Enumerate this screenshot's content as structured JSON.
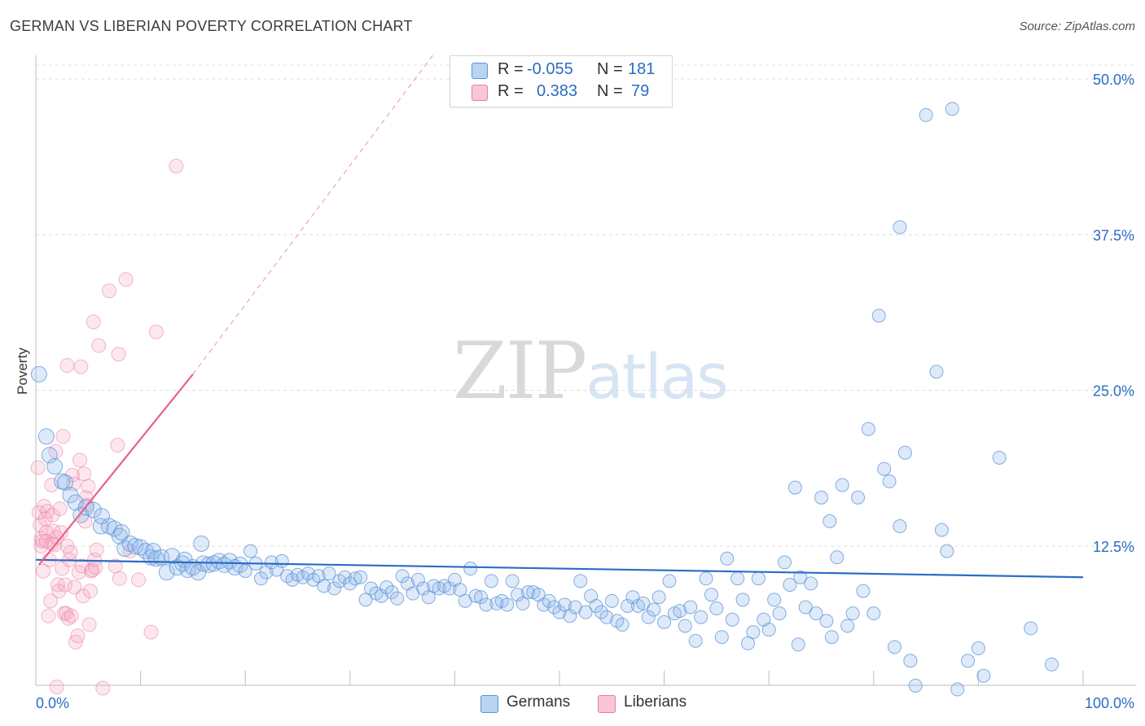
{
  "header": {
    "title": "GERMAN VS LIBERIAN POVERTY CORRELATION CHART",
    "source": "Source: ZipAtlas.com"
  },
  "watermark": {
    "zip": "ZIP",
    "atlas": "atlas"
  },
  "legend": {
    "rows": [
      {
        "r_label": "R =",
        "r_value": "-0.055",
        "n_label": "N =",
        "n_value": "181",
        "color": "#5f93d6"
      },
      {
        "r_label": "R =",
        "r_value": "0.383",
        "n_label": "N =",
        "n_value": "79",
        "color": "#e77fa3"
      }
    ]
  },
  "bottom_legend": {
    "germans": "Germans",
    "liberians": "Liberians"
  },
  "chart_data": {
    "type": "scatter",
    "title": "GERMAN VS LIBERIAN POVERTY CORRELATION CHART",
    "xlabel": "",
    "ylabel": "Poverty",
    "xlim": [
      0,
      100
    ],
    "ylim": [
      0,
      52
    ],
    "x_tick_labels": [
      "0.0%",
      "100.0%"
    ],
    "y_ticks": [
      12.5,
      25.0,
      37.5,
      50.0
    ],
    "y_tick_labels": [
      "12.5%",
      "25.0%",
      "37.5%",
      "50.0%"
    ],
    "colors": {
      "germans": "#5f93d6",
      "liberians": "#e77fa3",
      "germans_line": "#2b6cc4",
      "liberians_line": "#e8608f"
    },
    "series": [
      {
        "name": "Germans",
        "trend": {
          "x": [
            0,
            100
          ],
          "y": [
            11.4,
            10.0
          ]
        },
        "points": [
          [
            0.3,
            26.3
          ],
          [
            1,
            21.3
          ],
          [
            1.3,
            19.8
          ],
          [
            1.8,
            18.9
          ],
          [
            2.5,
            17.7
          ],
          [
            2.8,
            17.6
          ],
          [
            3.3,
            16.6
          ],
          [
            3.8,
            16
          ],
          [
            4.3,
            15
          ],
          [
            4.8,
            15.6
          ],
          [
            5.5,
            15.4
          ],
          [
            6.2,
            14.1
          ],
          [
            6.3,
            14.9
          ],
          [
            7,
            14.1
          ],
          [
            7.5,
            13.9
          ],
          [
            8,
            13.3
          ],
          [
            8.2,
            13.6
          ],
          [
            8.5,
            12.3
          ],
          [
            9,
            12.7
          ],
          [
            9.5,
            12.5
          ],
          [
            10,
            12.4
          ],
          [
            10.5,
            12.1
          ],
          [
            11,
            11.6
          ],
          [
            11.2,
            12.1
          ],
          [
            11.5,
            11.5
          ],
          [
            12,
            11.6
          ],
          [
            12.5,
            10.4
          ],
          [
            13,
            11.7
          ],
          [
            13.5,
            10.8
          ],
          [
            14,
            11.1
          ],
          [
            14.2,
            11.4
          ],
          [
            14.5,
            10.6
          ],
          [
            15,
            10.8
          ],
          [
            15.5,
            10.4
          ],
          [
            15.8,
            12.7
          ],
          [
            16,
            11.1
          ],
          [
            16.5,
            11
          ],
          [
            17,
            11.1
          ],
          [
            17.5,
            11.3
          ],
          [
            18,
            11
          ],
          [
            18.5,
            11.3
          ],
          [
            19,
            10.8
          ],
          [
            19.5,
            11
          ],
          [
            20,
            10.5
          ],
          [
            20.5,
            12.1
          ],
          [
            21,
            11.1
          ],
          [
            21.5,
            9.9
          ],
          [
            22,
            10.4
          ],
          [
            22.5,
            11.2
          ],
          [
            23,
            10.6
          ],
          [
            23.5,
            11.3
          ],
          [
            24,
            10.1
          ],
          [
            24.5,
            9.8
          ],
          [
            25,
            10.2
          ],
          [
            25.5,
            10
          ],
          [
            26,
            10.3
          ],
          [
            26.5,
            9.8
          ],
          [
            27,
            10.1
          ],
          [
            27.5,
            9.3
          ],
          [
            28,
            10.3
          ],
          [
            28.5,
            9.1
          ],
          [
            29,
            9.7
          ],
          [
            29.5,
            10
          ],
          [
            30,
            9.5
          ],
          [
            30.5,
            9.9
          ],
          [
            31,
            10
          ],
          [
            31.5,
            8.2
          ],
          [
            32,
            9.1
          ],
          [
            32.5,
            8.7
          ],
          [
            33,
            8.5
          ],
          [
            33.5,
            9.2
          ],
          [
            34,
            8.8
          ],
          [
            34.5,
            8.3
          ],
          [
            35,
            10.1
          ],
          [
            35.5,
            9.5
          ],
          [
            36,
            8.7
          ],
          [
            36.5,
            9.8
          ],
          [
            37,
            9.1
          ],
          [
            37.5,
            8.4
          ],
          [
            38,
            9.3
          ],
          [
            38.5,
            9.1
          ],
          [
            39,
            9.3
          ],
          [
            39.5,
            9.1
          ],
          [
            40,
            9.8
          ],
          [
            40.5,
            9
          ],
          [
            41,
            8.1
          ],
          [
            41.5,
            10.7
          ],
          [
            42,
            8.5
          ],
          [
            42.5,
            8.4
          ],
          [
            43,
            7.8
          ],
          [
            43.5,
            9.7
          ],
          [
            44,
            7.9
          ],
          [
            44.5,
            8.1
          ],
          [
            45,
            7.8
          ],
          [
            45.5,
            9.7
          ],
          [
            46,
            8.6
          ],
          [
            46.5,
            7.9
          ],
          [
            47,
            8.8
          ],
          [
            47.5,
            8.8
          ],
          [
            48,
            8.6
          ],
          [
            48.5,
            7.8
          ],
          [
            49,
            8.1
          ],
          [
            49.5,
            7.6
          ],
          [
            50,
            7.2
          ],
          [
            50.5,
            7.8
          ],
          [
            51,
            6.9
          ],
          [
            51.5,
            7.6
          ],
          [
            52,
            9.7
          ],
          [
            52.5,
            7.2
          ],
          [
            53,
            8.5
          ],
          [
            53.5,
            7.7
          ],
          [
            54,
            7.2
          ],
          [
            54.5,
            6.8
          ],
          [
            55,
            8.1
          ],
          [
            55.5,
            6.5
          ],
          [
            56,
            6.2
          ],
          [
            56.5,
            7.7
          ],
          [
            57,
            8.4
          ],
          [
            57.5,
            7.7
          ],
          [
            58,
            7.9
          ],
          [
            58.5,
            6.8
          ],
          [
            59,
            7.4
          ],
          [
            59.5,
            8.4
          ],
          [
            60,
            6.4
          ],
          [
            60.5,
            9.7
          ],
          [
            61,
            7.1
          ],
          [
            61.5,
            7.3
          ],
          [
            62,
            6.1
          ],
          [
            62.5,
            7.6
          ],
          [
            63,
            4.9
          ],
          [
            63.5,
            6.8
          ],
          [
            64,
            9.9
          ],
          [
            64.5,
            8.6
          ],
          [
            65,
            7.5
          ],
          [
            65.5,
            5.2
          ],
          [
            66,
            11.5
          ],
          [
            66.5,
            6.6
          ],
          [
            67,
            9.9
          ],
          [
            67.5,
            8.2
          ],
          [
            68,
            4.7
          ],
          [
            68.5,
            5.6
          ],
          [
            69,
            9.9
          ],
          [
            69.5,
            6.6
          ],
          [
            70,
            5.8
          ],
          [
            70.5,
            8.2
          ],
          [
            71,
            7.1
          ],
          [
            71.5,
            11.2
          ],
          [
            72,
            9.4
          ],
          [
            72.5,
            17.2
          ],
          [
            72.8,
            4.6
          ],
          [
            73,
            10
          ],
          [
            73.5,
            7.6
          ],
          [
            74,
            9.5
          ],
          [
            74.5,
            7.1
          ],
          [
            75,
            16.4
          ],
          [
            75.5,
            6.5
          ],
          [
            75.8,
            14.5
          ],
          [
            76,
            5.2
          ],
          [
            76.5,
            11.6
          ],
          [
            77,
            17.4
          ],
          [
            77.5,
            6.1
          ],
          [
            78,
            7.1
          ],
          [
            78.5,
            16.4
          ],
          [
            79,
            8.9
          ],
          [
            79.5,
            21.9
          ],
          [
            80,
            7.1
          ],
          [
            80.5,
            31
          ],
          [
            81,
            18.7
          ],
          [
            81.5,
            17.7
          ],
          [
            82,
            4.4
          ],
          [
            82.5,
            14.1
          ],
          [
            83,
            20
          ],
          [
            83.5,
            3.3
          ],
          [
            84,
            1.3
          ],
          [
            85,
            47.1
          ],
          [
            86,
            26.5
          ],
          [
            86.5,
            13.8
          ],
          [
            87,
            12.1
          ],
          [
            87.5,
            47.6
          ],
          [
            88,
            1
          ],
          [
            89,
            3.3
          ],
          [
            90,
            4.3
          ],
          [
            90.5,
            2.1
          ],
          [
            92,
            19.6
          ],
          [
            95,
            5.9
          ],
          [
            97,
            3
          ],
          [
            82.5,
            38.1
          ]
        ]
      },
      {
        "name": "Liberians",
        "trend": {
          "x": [
            0.3,
            15
          ],
          "y": [
            11,
            26.3
          ],
          "dashed_extension_to": [
            38,
            52
          ]
        },
        "points": [
          [
            0.2,
            18.8
          ],
          [
            0.3,
            15.2
          ],
          [
            0.4,
            14.2
          ],
          [
            0.5,
            13.1
          ],
          [
            0.5,
            12.5
          ],
          [
            0.6,
            12.9
          ],
          [
            0.7,
            10.5
          ],
          [
            0.8,
            15.7
          ],
          [
            0.9,
            14.7
          ],
          [
            1,
            13.6
          ],
          [
            1,
            12.9
          ],
          [
            1.1,
            15.3
          ],
          [
            1.2,
            6.9
          ],
          [
            1.3,
            11.4
          ],
          [
            1.4,
            8.1
          ],
          [
            1.5,
            12.7
          ],
          [
            1.5,
            17.4
          ],
          [
            1.6,
            15
          ],
          [
            1.7,
            13.7
          ],
          [
            1.8,
            12.6
          ],
          [
            1.9,
            20.1
          ],
          [
            2,
            13.2
          ],
          [
            2,
            1.2
          ],
          [
            2.1,
            9.4
          ],
          [
            2.2,
            8.9
          ],
          [
            2.3,
            15.5
          ],
          [
            2.4,
            13.6
          ],
          [
            2.5,
            10.7
          ],
          [
            2.6,
            21.3
          ],
          [
            2.7,
            7.1
          ],
          [
            2.8,
            9.4
          ],
          [
            2.9,
            7.1
          ],
          [
            3,
            12.5
          ],
          [
            3,
            27
          ],
          [
            3.1,
            6.7
          ],
          [
            3.2,
            11.4
          ],
          [
            3.3,
            12
          ],
          [
            3.4,
            6.9
          ],
          [
            3.5,
            18.2
          ],
          [
            3.6,
            17.5
          ],
          [
            3.7,
            9.2
          ],
          [
            3.8,
            4.8
          ],
          [
            4,
            5.3
          ],
          [
            4.1,
            10.4
          ],
          [
            4.2,
            19.4
          ],
          [
            4.3,
            26.9
          ],
          [
            4.4,
            10.9
          ],
          [
            4.5,
            8.5
          ],
          [
            4.6,
            18.3
          ],
          [
            4.7,
            14.5
          ],
          [
            4.8,
            16.4
          ],
          [
            4.9,
            15.8
          ],
          [
            5,
            17.3
          ],
          [
            5.1,
            6.2
          ],
          [
            5.2,
            8.9
          ],
          [
            5.3,
            10.5
          ],
          [
            5.4,
            10.6
          ],
          [
            5.5,
            30.5
          ],
          [
            5.6,
            11.4
          ],
          [
            5.7,
            10.8
          ],
          [
            5.8,
            12.2
          ],
          [
            6,
            28.6
          ],
          [
            6.4,
            1.1
          ],
          [
            7,
            33
          ],
          [
            7.6,
            10.9
          ],
          [
            7.8,
            20.6
          ],
          [
            7.9,
            27.9
          ],
          [
            8,
            9.9
          ],
          [
            8.6,
            33.9
          ],
          [
            9,
            12.1
          ],
          [
            9.8,
            9.8
          ],
          [
            11,
            5.6
          ],
          [
            11.5,
            29.7
          ],
          [
            13.4,
            43
          ]
        ]
      }
    ]
  }
}
